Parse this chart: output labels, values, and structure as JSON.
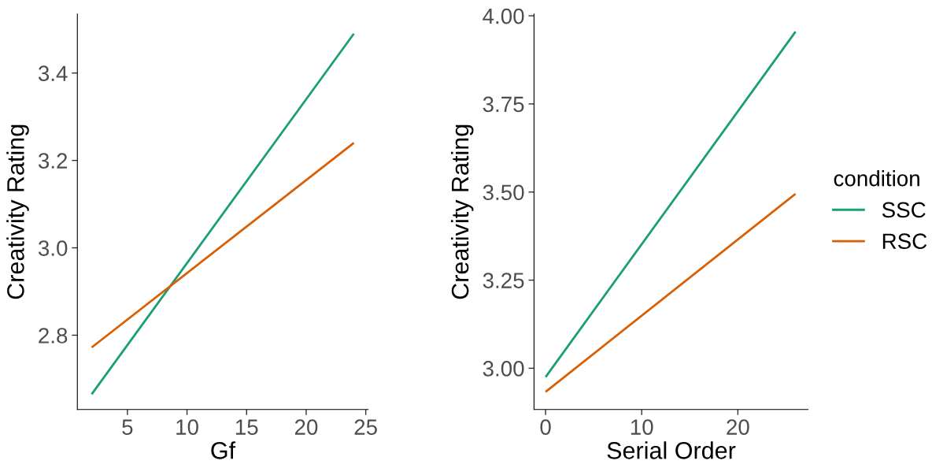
{
  "chart_data": [
    {
      "type": "line",
      "xlabel": "Gf",
      "ylabel": "Creativity Rating",
      "xlim": [
        0.8,
        25.2
      ],
      "xticks": [
        5,
        10,
        15,
        20,
        25
      ],
      "ylim": [
        2.63,
        3.535
      ],
      "yticks": [
        2.8,
        {
          "value": 3.0,
          "label": "3.0"
        },
        3.2,
        3.4
      ],
      "grid": false,
      "legend": false,
      "series": [
        {
          "color": "#1b9e77",
          "x": [
            2,
            24
          ],
          "values": [
            2.665,
            3.49
          ]
        },
        {
          "color": "#d95f02",
          "x": [
            2,
            24
          ],
          "values": [
            2.772,
            3.24
          ]
        }
      ]
    },
    {
      "type": "line",
      "xlabel": "Serial Order",
      "ylabel": "Creativity Rating",
      "xlim": [
        -1.2,
        27.3
      ],
      "xticks": [
        0,
        10,
        20
      ],
      "ylim": [
        2.883,
        4.005
      ],
      "yticks": [
        {
          "value": 3.0,
          "label": "3.00"
        },
        {
          "value": 3.25,
          "label": "3.25"
        },
        {
          "value": 3.5,
          "label": "3.50"
        },
        {
          "value": 3.75,
          "label": "3.75"
        },
        {
          "value": 4.0,
          "label": "4.00"
        }
      ],
      "grid": false,
      "legend": "right",
      "legend_title": "condition",
      "series": [
        {
          "name": "SSC",
          "color": "#1b9e77",
          "x": [
            0,
            26
          ],
          "values": [
            2.975,
            3.955
          ]
        },
        {
          "name": "RSC",
          "color": "#d95f02",
          "x": [
            0,
            26
          ],
          "values": [
            2.933,
            3.495
          ]
        }
      ]
    }
  ]
}
